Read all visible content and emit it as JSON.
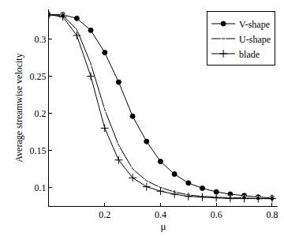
{
  "chart_data": {
    "type": "line",
    "x_label": "μ",
    "y_label": "Average streamwise velocity",
    "x": [
      0,
      0.05,
      0.1,
      0.15,
      0.2,
      0.25,
      0.3,
      0.35,
      0.4,
      0.45,
      0.5,
      0.55,
      0.6,
      0.65,
      0.7,
      0.75,
      0.8
    ],
    "series": [
      {
        "name": "V-shape",
        "color": "#000000",
        "marker": "circle",
        "line_style": "solid",
        "values": [
          0.333,
          0.333,
          0.328,
          0.312,
          0.282,
          0.242,
          0.196,
          0.162,
          0.135,
          0.118,
          0.106,
          0.099,
          0.094,
          0.091,
          0.089,
          0.087,
          0.086
        ]
      },
      {
        "name": "U-shape",
        "color": "#000000",
        "marker": "circle-open",
        "line_style": "solid",
        "values": [
          0.333,
          0.332,
          0.313,
          0.267,
          0.205,
          0.157,
          0.125,
          0.109,
          0.1,
          0.094,
          0.09,
          0.088,
          0.087,
          0.086,
          0.086,
          0.085,
          0.085
        ]
      },
      {
        "name": "blade",
        "color": "#000000",
        "marker": "cross",
        "line_style": "solid",
        "values": [
          0.333,
          0.33,
          0.305,
          0.25,
          0.18,
          0.137,
          0.113,
          0.101,
          0.095,
          0.091,
          0.088,
          0.087,
          0.086,
          0.085,
          0.085,
          0.085,
          0.085
        ]
      }
    ],
    "xlim": [
      0,
      0.82
    ],
    "ylim": [
      0.075,
      0.34
    ],
    "xticks": [
      0.2,
      0.4,
      0.6,
      0.8
    ],
    "yticks": [
      0.1,
      0.15,
      0.2,
      0.25,
      0.3
    ],
    "grid": false,
    "legend": "top right"
  }
}
